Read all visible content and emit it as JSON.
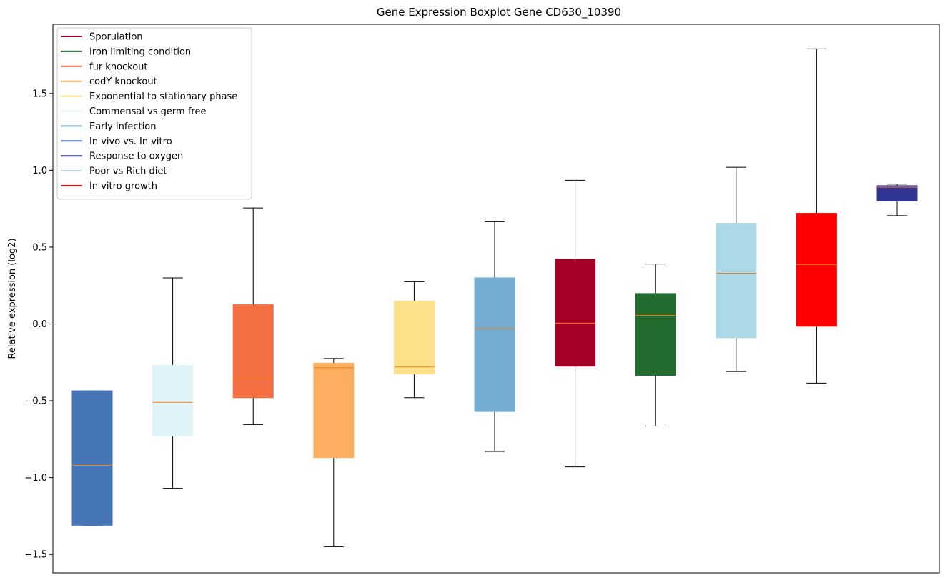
{
  "chart_data": {
    "type": "boxplot",
    "title": "Gene Expression Boxplot Gene CD630_10390",
    "xlabel": "",
    "ylabel": "Relative expression (log2)",
    "ylim": [
      -1.62,
      1.95
    ],
    "yticks": [
      -1.5,
      -1.0,
      -0.5,
      0.0,
      0.5,
      1.0,
      1.5
    ],
    "ytick_labels": [
      "−1.5",
      "−1.0",
      "−0.5",
      "0.0",
      "0.5",
      "1.0",
      "1.5"
    ],
    "grid": false,
    "legend_position": "upper-left",
    "legend": [
      {
        "label": "Sporulation",
        "color": "#a50026"
      },
      {
        "label": "Iron limiting condition",
        "color": "#236b2e"
      },
      {
        "label": "fur knockout",
        "color": "#f46d43"
      },
      {
        "label": "codY knockout",
        "color": "#fdae61"
      },
      {
        "label": "Exponential to stationary phase",
        "color": "#fee08b"
      },
      {
        "label": "Commensal vs germ free",
        "color": "#e0f3f8"
      },
      {
        "label": "Early infection",
        "color": "#74add1"
      },
      {
        "label": "In vivo vs. In vitro",
        "color": "#4575b4"
      },
      {
        "label": "Response to oxygen",
        "color": "#313695"
      },
      {
        "label": "Poor vs Rich diet",
        "color": "#add8e6"
      },
      {
        "label": "In vitro growth",
        "color": "#ff0000"
      }
    ],
    "series": [
      {
        "name": "In vivo vs. In vitro",
        "color": "#4575b4",
        "whisker_low": -1.31,
        "q1": -1.31,
        "median": -0.92,
        "q3": -0.435,
        "whisker_high": -0.435
      },
      {
        "name": "Commensal vs germ free",
        "color": "#e0f3f8",
        "whisker_low": -1.07,
        "q1": -0.73,
        "median": -0.51,
        "q3": -0.27,
        "whisker_high": 0.3
      },
      {
        "name": "fur knockout",
        "color": "#f46d43",
        "whisker_low": -0.655,
        "q1": -0.48,
        "median": -0.355,
        "q3": 0.125,
        "whisker_high": 0.755
      },
      {
        "name": "codY knockout",
        "color": "#fdae61",
        "whisker_low": -1.45,
        "q1": -0.87,
        "median": -0.285,
        "q3": -0.255,
        "whisker_high": -0.225
      },
      {
        "name": "Exponential to stationary phase",
        "color": "#fee08b",
        "whisker_low": -0.48,
        "q1": -0.325,
        "median": -0.28,
        "q3": 0.148,
        "whisker_high": 0.275
      },
      {
        "name": "Early infection",
        "color": "#74add1",
        "whisker_low": -0.83,
        "q1": -0.57,
        "median": -0.03,
        "q3": 0.3,
        "whisker_high": 0.665
      },
      {
        "name": "Sporulation",
        "color": "#a50026",
        "whisker_low": -0.93,
        "q1": -0.275,
        "median": 0.005,
        "q3": 0.42,
        "whisker_high": 0.935
      },
      {
        "name": "Iron limiting condition",
        "color": "#236b2e",
        "whisker_low": -0.665,
        "q1": -0.335,
        "median": 0.055,
        "q3": 0.198,
        "whisker_high": 0.39
      },
      {
        "name": "Poor vs Rich diet",
        "color": "#add8e6",
        "whisker_low": -0.31,
        "q1": -0.09,
        "median": 0.33,
        "q3": 0.655,
        "whisker_high": 1.02
      },
      {
        "name": "In vitro growth",
        "color": "#ff0000",
        "whisker_low": -0.385,
        "q1": -0.015,
        "median": 0.385,
        "q3": 0.72,
        "whisker_high": 1.79
      },
      {
        "name": "Response to oxygen",
        "color": "#313695",
        "whisker_low": 0.705,
        "q1": 0.8,
        "median": 0.89,
        "q3": 0.9,
        "whisker_high": 0.91
      }
    ],
    "median_color": "#ff7f0e"
  }
}
